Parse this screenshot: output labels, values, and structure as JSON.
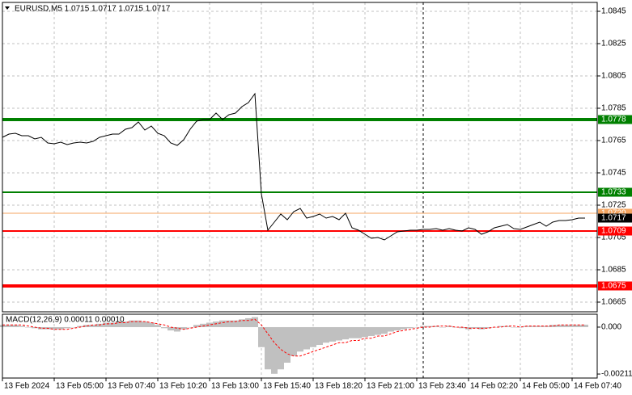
{
  "chart_data": [
    {
      "type": "line",
      "title": "EURUSD,M5  1.0715 1.0717 1.0715 1.0717",
      "color": "#000000",
      "grid": true,
      "categories": [
        "13 Feb 2024",
        null,
        null,
        null,
        null,
        null,
        null,
        null,
        "13 Feb 05:00",
        null,
        null,
        null,
        null,
        null,
        null,
        null,
        "13 Feb 07:40",
        null,
        null,
        null,
        null,
        null,
        null,
        null,
        "13 Feb 10:20",
        null,
        null,
        null,
        null,
        null,
        null,
        null,
        "13 Feb 13:00",
        null,
        null,
        null,
        null,
        null,
        null,
        null,
        "13 Feb 15:40",
        null,
        null,
        null,
        null,
        null,
        null,
        null,
        "13 Feb 18:20",
        null,
        null,
        null,
        null,
        null,
        null,
        null,
        "13 Feb 21:00",
        null,
        null,
        null,
        null,
        null,
        null,
        null,
        "13 Feb 23:40",
        null,
        null,
        null,
        null,
        null,
        null,
        null,
        "14 Feb 02:20",
        null,
        null,
        null,
        null,
        null,
        null,
        null,
        "14 Feb 05:00",
        null,
        null,
        null,
        null,
        null,
        null,
        null,
        "14 Feb 07:40",
        null,
        null
      ],
      "values": [
        1.0767,
        1.0769,
        1.07695,
        1.0768,
        1.0768,
        1.0766,
        1.0767,
        1.07635,
        1.0763,
        1.0764,
        1.07625,
        1.07635,
        1.0764,
        1.07635,
        1.07645,
        1.0767,
        1.0768,
        1.0769,
        1.0769,
        1.0772,
        1.0773,
        1.07765,
        1.07715,
        1.0774,
        1.07695,
        1.0768,
        1.07635,
        1.0762,
        1.07655,
        1.0772,
        1.0777,
        1.0778,
        1.0778,
        1.0782,
        1.0778,
        1.0781,
        1.0782,
        1.0786,
        1.07885,
        1.0794,
        1.0732,
        1.07095,
        1.07145,
        1.07195,
        1.0716,
        1.0721,
        1.0723,
        1.0717,
        1.0718,
        1.07195,
        1.0717,
        1.0718,
        1.0716,
        1.072,
        1.0711,
        1.07095,
        1.0707,
        1.07045,
        1.0705,
        1.07035,
        1.0706,
        1.07085,
        1.0709,
        1.07095,
        1.07095,
        1.071,
        1.071,
        1.07105,
        1.07095,
        1.07105,
        1.07095,
        1.0709,
        1.0711,
        1.071,
        1.0707,
        1.07085,
        1.0711,
        1.0712,
        1.0713,
        1.07105,
        1.071,
        1.07115,
        1.0713,
        1.07145,
        1.0712,
        1.07145,
        1.07155,
        1.07155,
        1.0716,
        1.0717,
        1.0717
      ],
      "ylim": [
        1.0659,
        1.08505
      ],
      "yticks": [
        1.0845,
        1.0825,
        1.0805,
        1.0785,
        1.0765,
        1.0745,
        1.0725,
        1.0705,
        1.0685,
        1.0665
      ],
      "levels": [
        {
          "value": 1.0778,
          "color": "#008000",
          "width": 4
        },
        {
          "value": 1.0733,
          "color": "#008000",
          "width": 2
        },
        {
          "value": 1.072,
          "label": "1.0720",
          "color": "#f4a460",
          "width": 1
        },
        {
          "value": 1.0709,
          "color": "#ff0000",
          "width": 2
        },
        {
          "value": 1.0675,
          "color": "#ff0000",
          "width": 4
        }
      ],
      "price_tag": {
        "value": 1.0717,
        "color": "#000000"
      }
    },
    {
      "type": "bar",
      "title": "MACD(12,26,9) 0.00011 0.00010",
      "color": "#c0c0c0",
      "values": [
        0.0001,
        0.0001,
        0.0001,
        5e-05,
        0,
        -5e-05,
        -0.0001,
        -0.0001,
        -0.0001,
        -0.0001,
        -5e-05,
        0,
        5e-05,
        0.0001,
        0.0001,
        0.00015,
        0.0002,
        0.0002,
        0.00025,
        0.00025,
        0.0003,
        0.0003,
        0.00025,
        0.0002,
        0.0001,
        -5e-05,
        -0.00015,
        -0.0002,
        -0.0001,
        0,
        0.0001,
        0.00015,
        0.0002,
        0.00025,
        0.0003,
        0.0003,
        0.0003,
        0.00035,
        0.0004,
        0.00045,
        -0.0009,
        -0.0019,
        -0.0021,
        -0.0019,
        -0.0016,
        -0.0013,
        -0.0011,
        -0.001,
        -0.0009,
        -0.0008,
        -0.0007,
        -0.00065,
        -0.0006,
        -0.00055,
        -0.0005,
        -0.0005,
        -0.00045,
        -0.0004,
        -0.00035,
        -0.0003,
        -0.0002,
        -0.00015,
        -0.0001,
        -5e-05,
        0,
        5e-05,
        5e-05,
        5e-05,
        0,
        5e-05,
        0,
        -5e-05,
        -0.0001,
        -5e-05,
        -0.0001,
        -5e-05,
        0,
        5e-05,
        5e-05,
        0,
        0,
        5e-05,
        5e-05,
        5e-05,
        5e-05,
        0.0001,
        0.0001,
        0.0001,
        0.0001,
        0.0001,
        0.00011
      ],
      "signal": [
        0.0001,
        0.0001,
        0.0001,
        0.0001,
        5e-05,
        0,
        -5e-05,
        -5e-05,
        -0.0001,
        -0.0001,
        -0.0001,
        -5e-05,
        0,
        5e-05,
        0.0001,
        0.0001,
        0.00015,
        0.00015,
        0.0002,
        0.0002,
        0.00025,
        0.00025,
        0.00025,
        0.0002,
        0.00015,
        0.0001,
        0,
        -5e-05,
        -0.0001,
        -5e-05,
        0,
        5e-05,
        0.0001,
        0.00015,
        0.0002,
        0.00025,
        0.00025,
        0.0003,
        0.0003,
        0.00035,
        0.0001,
        -0.0003,
        -0.0007,
        -0.001,
        -0.0012,
        -0.0013,
        -0.0013,
        -0.0012,
        -0.0011,
        -0.001,
        -0.0009,
        -0.0008,
        -0.0007,
        -0.0007,
        -0.0006,
        -0.0006,
        -0.0005,
        -0.0005,
        -0.0004,
        -0.0004,
        -0.0003,
        -0.0002,
        -0.00015,
        -0.0001,
        -5e-05,
        0,
        0,
        5e-05,
        5e-05,
        5e-05,
        0,
        0,
        -5e-05,
        -5e-05,
        -5e-05,
        -5e-05,
        0,
        0,
        5e-05,
        5e-05,
        0,
        5e-05,
        5e-05,
        5e-05,
        5e-05,
        5e-05,
        0.0001,
        0.0001,
        0.0001,
        0.0001,
        0.0001
      ],
      "signal_color": "#ff0000",
      "ylim": [
        -0.00229,
        0.00058
      ],
      "yticks": [
        {
          "value": 0,
          "label": "0.000"
        },
        -0.00211
      ]
    }
  ]
}
